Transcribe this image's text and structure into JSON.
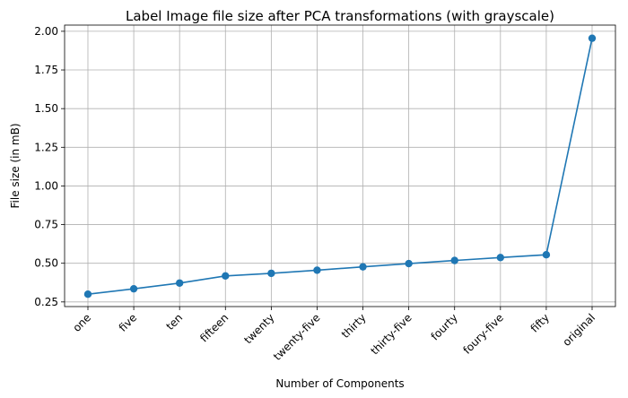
{
  "chart_data": {
    "type": "line",
    "title": "Label Image file size after PCA transformations (with grayscale)",
    "xlabel": "Number of Components",
    "ylabel": "File size (in mB)",
    "categories": [
      "one",
      "five",
      "ten",
      "fifteen",
      "twenty",
      "twenty-five",
      "thirty",
      "thirty-five",
      "fourty",
      "foury-five",
      "fifty",
      "original"
    ],
    "values": [
      0.3,
      0.335,
      0.372,
      0.418,
      0.435,
      0.455,
      0.477,
      0.498,
      0.518,
      0.537,
      0.555,
      1.955
    ],
    "ylim": [
      0.22,
      2.04
    ],
    "yticks": [
      "0.25",
      "0.50",
      "0.75",
      "1.00",
      "1.25",
      "1.50",
      "1.75",
      "2.00"
    ],
    "ytick_values": [
      0.25,
      0.5,
      0.75,
      1.0,
      1.25,
      1.5,
      1.75,
      2.0
    ],
    "grid": true,
    "line_color": "#1f77b4"
  }
}
